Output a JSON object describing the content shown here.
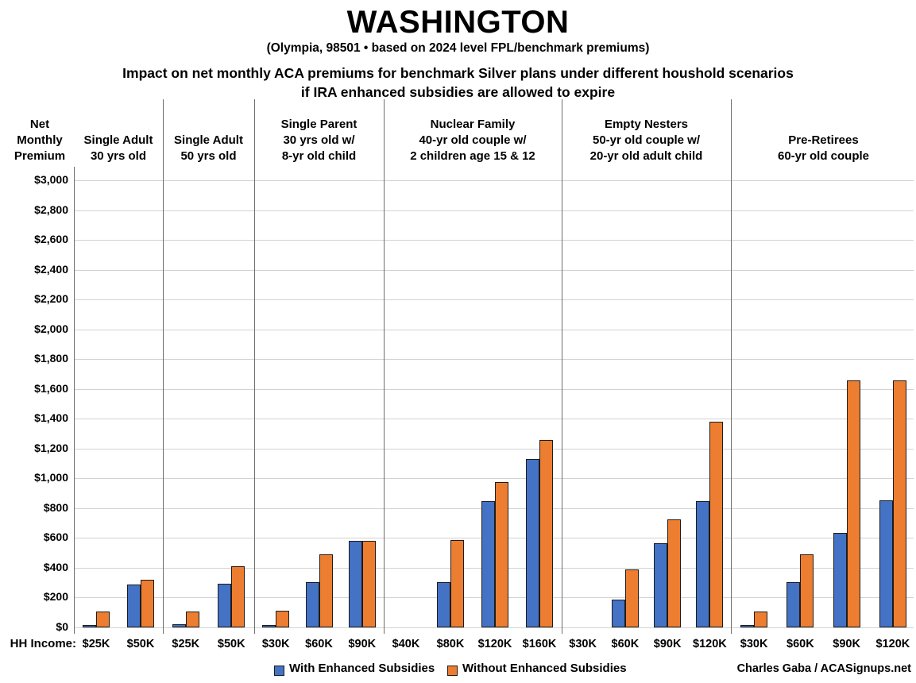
{
  "title": "WASHINGTON",
  "subtitle": "(Olympia, 98501 • based on 2024 level FPL/benchmark premiums)",
  "heading_line1": "Impact on net monthly ACA premiums for benchmark Silver plans under different houshold scenarios",
  "heading_line2": "if IRA enhanced subsidies are allowed to expire",
  "y_axis_title": "Net\nMonthly\nPremium",
  "hh_income_label": "HH Income:",
  "credit": "Charles Gaba / ACASignups.net",
  "legend": [
    {
      "label": "With Enhanced Subsidies",
      "color": "#4472C4"
    },
    {
      "label": "Without Enhanced Subsidies",
      "color": "#ED7D31"
    }
  ],
  "colors": {
    "with_enhanced_fill": "#4472C4",
    "without_enhanced_fill": "#ED7D31",
    "bar_border": "#1c1c1c",
    "gridline": "#d2d2d2",
    "divider": "#6e6e6e"
  },
  "chart_data": {
    "type": "bar",
    "title": "Impact on net monthly ACA premiums for benchmark Silver plans under different houshold scenarios if IRA enhanced subsidies are allowed to expire",
    "ylabel": "Net Monthly Premium",
    "xlabel": "HH Income",
    "ylim": [
      0,
      3000
    ],
    "ytick_step": 200,
    "ytick_format": "$",
    "grid": true,
    "legend_position": "bottom",
    "series_names": [
      "With Enhanced Subsidies",
      "Without Enhanced Subsidies"
    ],
    "groups": [
      {
        "label": "Single Adult\n30 yrs old",
        "categories": [
          "$25K",
          "$50K"
        ],
        "with_enhanced": [
          15,
          290
        ],
        "without_enhanced": [
          105,
          320
        ]
      },
      {
        "label": "Single Adult\n50 yrs old",
        "categories": [
          "$25K",
          "$50K"
        ],
        "with_enhanced": [
          20,
          295
        ],
        "without_enhanced": [
          105,
          410
        ]
      },
      {
        "label": "Single Parent\n30 yrs old w/\n8-yr old child",
        "categories": [
          "$30K",
          "$60K",
          "$90K"
        ],
        "with_enhanced": [
          10,
          305,
          580
        ],
        "without_enhanced": [
          110,
          490,
          580
        ]
      },
      {
        "label": "Nuclear Family\n40-yr old couple w/\n2 children age 15 & 12",
        "categories": [
          "$40K",
          "$80K",
          "$120K",
          "$160K"
        ],
        "with_enhanced": [
          0,
          305,
          845,
          1130
        ],
        "without_enhanced": [
          0,
          585,
          975,
          1260
        ]
      },
      {
        "label": "Empty Nesters\n50-yr old couple w/\n20-yr old adult child",
        "categories": [
          "$30K",
          "$60K",
          "$90K",
          "$120K"
        ],
        "with_enhanced": [
          0,
          185,
          565,
          845
        ],
        "without_enhanced": [
          0,
          390,
          725,
          1380
        ]
      },
      {
        "label": "Pre-Retirees\n60-yr old couple",
        "categories": [
          "$30K",
          "$60K",
          "$90K",
          "$120K"
        ],
        "with_enhanced": [
          10,
          305,
          635,
          850
        ],
        "without_enhanced": [
          105,
          490,
          1655,
          1655
        ]
      }
    ]
  }
}
